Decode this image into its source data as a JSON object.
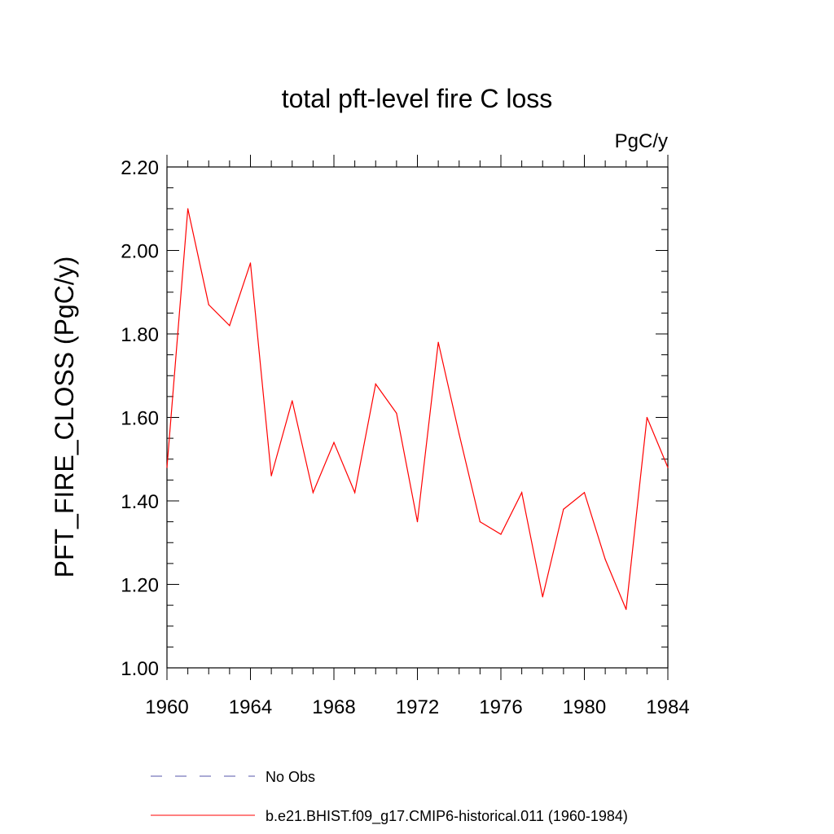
{
  "chart_data": {
    "type": "line",
    "title": "total pft-level fire C loss",
    "units": "PgC/y",
    "ylabel": "PFT_FIRE_CLOSS  (PgC/y)",
    "xlabel": "",
    "xlim": [
      1960,
      1984
    ],
    "ylim": [
      1.0,
      2.2
    ],
    "xticks": [
      1960,
      1964,
      1968,
      1972,
      1976,
      1980,
      1984
    ],
    "yticks": [
      "1.00",
      "1.20",
      "1.40",
      "1.60",
      "1.80",
      "2.00",
      "2.20"
    ],
    "grid": false,
    "legend_position": "bottom",
    "series": [
      {
        "name": "b.e21.BHIST.f09_g17.CMIP6-historical.011 (1960-1984)",
        "color": "#ff0000",
        "dash": "solid",
        "x": [
          1960,
          1961,
          1962,
          1963,
          1964,
          1965,
          1966,
          1967,
          1968,
          1969,
          1970,
          1971,
          1972,
          1973,
          1974,
          1975,
          1976,
          1977,
          1978,
          1979,
          1980,
          1981,
          1982,
          1983,
          1984
        ],
        "y": [
          1.48,
          2.1,
          1.87,
          1.82,
          1.97,
          1.46,
          1.64,
          1.42,
          1.54,
          1.42,
          1.68,
          1.61,
          1.35,
          1.78,
          1.56,
          1.35,
          1.32,
          1.42,
          1.17,
          1.38,
          1.42,
          1.26,
          1.14,
          1.6,
          1.48
        ]
      }
    ],
    "legend": [
      {
        "label": "No Obs",
        "color": "#5555aa",
        "dash": "dashed"
      },
      {
        "label": "b.e21.BHIST.f09_g17.CMIP6-historical.011 (1960-1984)",
        "color": "#ff0000",
        "dash": "solid"
      }
    ]
  }
}
